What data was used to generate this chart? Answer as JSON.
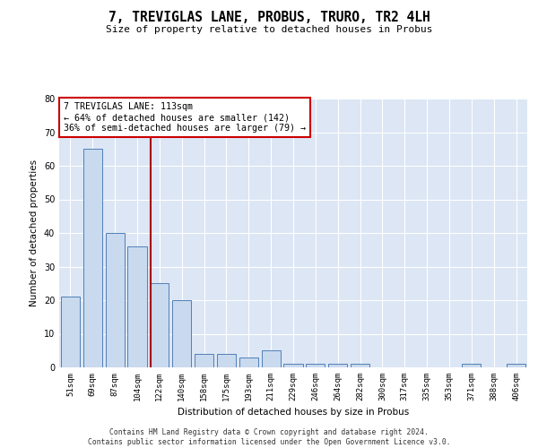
{
  "title": "7, TREVIGLAS LANE, PROBUS, TRURO, TR2 4LH",
  "subtitle": "Size of property relative to detached houses in Probus",
  "xlabel": "Distribution of detached houses by size in Probus",
  "ylabel": "Number of detached properties",
  "categories": [
    "51sqm",
    "69sqm",
    "87sqm",
    "104sqm",
    "122sqm",
    "140sqm",
    "158sqm",
    "175sqm",
    "193sqm",
    "211sqm",
    "229sqm",
    "246sqm",
    "264sqm",
    "282sqm",
    "300sqm",
    "317sqm",
    "335sqm",
    "353sqm",
    "371sqm",
    "388sqm",
    "406sqm"
  ],
  "values": [
    21,
    65,
    40,
    36,
    25,
    20,
    4,
    4,
    3,
    5,
    1,
    1,
    1,
    1,
    0,
    0,
    0,
    0,
    1,
    0,
    1
  ],
  "bar_color": "#c9d9ee",
  "bar_edge_color": "#5080b8",
  "vline_color": "#aa0000",
  "annotation_text": "7 TREVIGLAS LANE: 113sqm\n← 64% of detached houses are smaller (142)\n36% of semi-detached houses are larger (79) →",
  "annotation_box_color": "#ffffff",
  "annotation_box_edge_color": "#cc0000",
  "ylim": [
    0,
    80
  ],
  "yticks": [
    0,
    10,
    20,
    30,
    40,
    50,
    60,
    70,
    80
  ],
  "background_color": "#dce6f5",
  "grid_color": "#ffffff",
  "footer_line1": "Contains HM Land Registry data © Crown copyright and database right 2024.",
  "footer_line2": "Contains public sector information licensed under the Open Government Licence v3.0."
}
